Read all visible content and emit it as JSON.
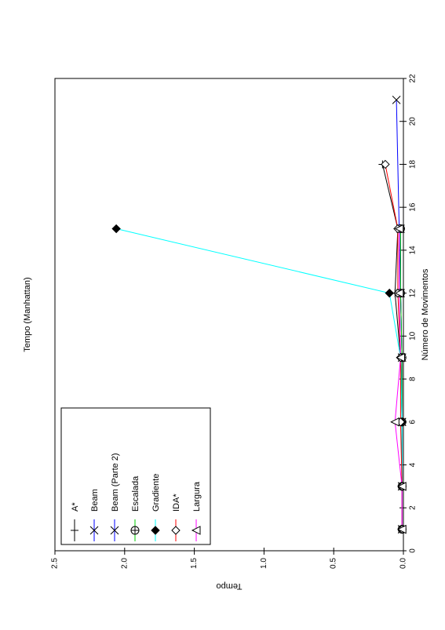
{
  "chart_data": {
    "type": "line",
    "orientation": "rotated 90 degrees clockwise (moves axis vertical on right, time axis horizontal at bottom)",
    "title": "Tempo (Manhattan)",
    "xlabel": "Número de Movimentos",
    "ylabel": "Tempo",
    "xlim": [
      0,
      22
    ],
    "ylim": [
      0,
      2.5
    ],
    "xticks": [
      "0",
      "2",
      "4",
      "6",
      "8",
      "10",
      "12",
      "14",
      "16",
      "18",
      "20",
      "22"
    ],
    "yticks": [
      "0.0",
      "0.5",
      "1.0",
      "1.5",
      "2.0",
      "2.5"
    ],
    "grid": false,
    "legend_position": "bottom-left",
    "series": [
      {
        "name": "A*",
        "color": "#000000",
        "marker": "plus",
        "points": [
          [
            1,
            0.01
          ],
          [
            3,
            0.01
          ],
          [
            6,
            0.01
          ],
          [
            9,
            0.02
          ],
          [
            12,
            0.06
          ],
          [
            15,
            0.04
          ],
          [
            18,
            0.15
          ]
        ]
      },
      {
        "name": "Beam",
        "color": "#0000ff",
        "marker": "x",
        "points": [
          [
            1,
            0.01
          ],
          [
            3,
            0.01
          ],
          [
            6,
            0.01
          ],
          [
            9,
            0.01
          ],
          [
            12,
            0.02
          ],
          [
            15,
            0.02
          ]
        ]
      },
      {
        "name": "Beam (Parte 2)",
        "color": "#0000ff",
        "marker": "x",
        "points": [
          [
            1,
            0.01
          ],
          [
            3,
            0.01
          ],
          [
            6,
            0.01
          ],
          [
            9,
            0.01
          ],
          [
            12,
            0.02
          ],
          [
            21,
            0.05
          ]
        ]
      },
      {
        "name": "Escalada",
        "color": "#00cc00",
        "marker": "circle-plus",
        "points": [
          [
            1,
            0.01
          ],
          [
            3,
            0.01
          ],
          [
            6,
            0.01
          ],
          [
            9,
            0.01
          ],
          [
            12,
            0.02
          ],
          [
            15,
            0.02
          ]
        ]
      },
      {
        "name": "Gradiente",
        "color": "#00ffff",
        "marker": "diamond-filled",
        "points": [
          [
            1,
            0.01
          ],
          [
            3,
            0.01
          ],
          [
            6,
            0.01
          ],
          [
            9,
            0.02
          ],
          [
            12,
            0.1
          ],
          [
            15,
            2.06
          ]
        ]
      },
      {
        "name": "IDA*",
        "color": "#ff0000",
        "marker": "diamond-open",
        "points": [
          [
            1,
            0.01
          ],
          [
            3,
            0.01
          ],
          [
            6,
            0.02
          ],
          [
            9,
            0.02
          ],
          [
            12,
            0.04
          ],
          [
            15,
            0.04
          ],
          [
            18,
            0.13
          ]
        ]
      },
      {
        "name": "Largura",
        "color": "#ff00ff",
        "marker": "triangle",
        "points": [
          [
            1,
            0.01
          ],
          [
            3,
            0.01
          ],
          [
            6,
            0.06
          ],
          [
            9,
            0.02
          ],
          [
            12,
            0.03
          ],
          [
            15,
            0.03
          ]
        ]
      }
    ]
  }
}
